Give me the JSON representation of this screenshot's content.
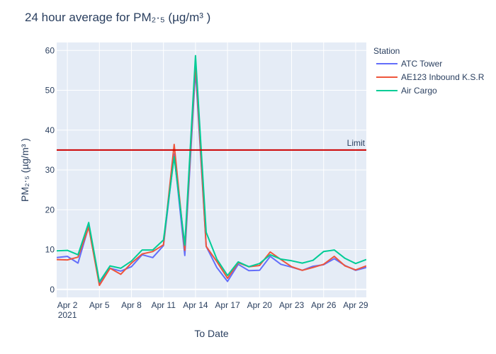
{
  "chart_data": {
    "type": "line",
    "title": "24 hour average for PM₂·₅ (µg/m³ )",
    "xlabel": "To Date",
    "ylabel": "PM₂·₅ (µg/m³ )",
    "x_range": [
      "2021-04-01",
      "2021-04-30"
    ],
    "ylim": [
      -2,
      62
    ],
    "x_ticks": [
      {
        "date": "2021-04-02",
        "label": "Apr 2",
        "sublabel": "2021"
      },
      {
        "date": "2021-04-05",
        "label": "Apr 5"
      },
      {
        "date": "2021-04-08",
        "label": "Apr 8"
      },
      {
        "date": "2021-04-11",
        "label": "Apr 11"
      },
      {
        "date": "2021-04-14",
        "label": "Apr 14"
      },
      {
        "date": "2021-04-17",
        "label": "Apr 17"
      },
      {
        "date": "2021-04-20",
        "label": "Apr 20"
      },
      {
        "date": "2021-04-23",
        "label": "Apr 23"
      },
      {
        "date": "2021-04-26",
        "label": "Apr 26"
      },
      {
        "date": "2021-04-29",
        "label": "Apr 29"
      }
    ],
    "y_ticks": [
      0,
      10,
      20,
      30,
      40,
      50,
      60
    ],
    "grid": true,
    "legend": {
      "title": "Station",
      "placement": "right"
    },
    "x": [
      "2021-04-01",
      "2021-04-02",
      "2021-04-03",
      "2021-04-04",
      "2021-04-05",
      "2021-04-06",
      "2021-04-07",
      "2021-04-08",
      "2021-04-09",
      "2021-04-10",
      "2021-04-11",
      "2021-04-12",
      "2021-04-13",
      "2021-04-14",
      "2021-04-15",
      "2021-04-16",
      "2021-04-17",
      "2021-04-18",
      "2021-04-19",
      "2021-04-20",
      "2021-04-21",
      "2021-04-22",
      "2021-04-23",
      "2021-04-24",
      "2021-04-25",
      "2021-04-26",
      "2021-04-27",
      "2021-04-28",
      "2021-04-29",
      "2021-04-30"
    ],
    "series": [
      {
        "name": "ATC Tower",
        "color": "#636efa",
        "values": [
          8.0,
          8.3,
          6.6,
          15.8,
          1.5,
          5.3,
          4.6,
          5.7,
          8.7,
          8.0,
          11.0,
          34.0,
          8.5,
          55.0,
          10.8,
          5.5,
          2.0,
          6.3,
          4.7,
          4.8,
          8.3,
          6.3,
          5.6,
          4.8,
          5.8,
          6.2,
          7.7,
          6.0,
          4.8,
          5.5
        ]
      },
      {
        "name": "AE123 Inbound K.S.R",
        "color": "#ef553b",
        "values": [
          7.5,
          7.4,
          8.1,
          15.6,
          1.0,
          5.3,
          3.8,
          6.6,
          8.9,
          9.5,
          11.2,
          36.4,
          9.8,
          57.0,
          10.8,
          7.0,
          2.8,
          6.7,
          5.7,
          6.0,
          9.4,
          7.5,
          5.7,
          4.8,
          5.5,
          6.3,
          8.3,
          5.9,
          4.9,
          5.9
        ]
      },
      {
        "name": "Air Cargo",
        "color": "#00cc96",
        "values": [
          9.7,
          9.8,
          8.7,
          16.8,
          1.9,
          5.9,
          5.3,
          7.1,
          9.9,
          9.9,
          12.4,
          33.3,
          11.1,
          58.7,
          14.3,
          7.6,
          3.5,
          6.9,
          5.7,
          6.5,
          8.7,
          7.6,
          7.2,
          6.6,
          7.3,
          9.5,
          9.9,
          7.8,
          6.5,
          7.5
        ]
      }
    ],
    "reference_line": {
      "value": 35,
      "label": "Limit",
      "color": "#cc0000"
    }
  }
}
